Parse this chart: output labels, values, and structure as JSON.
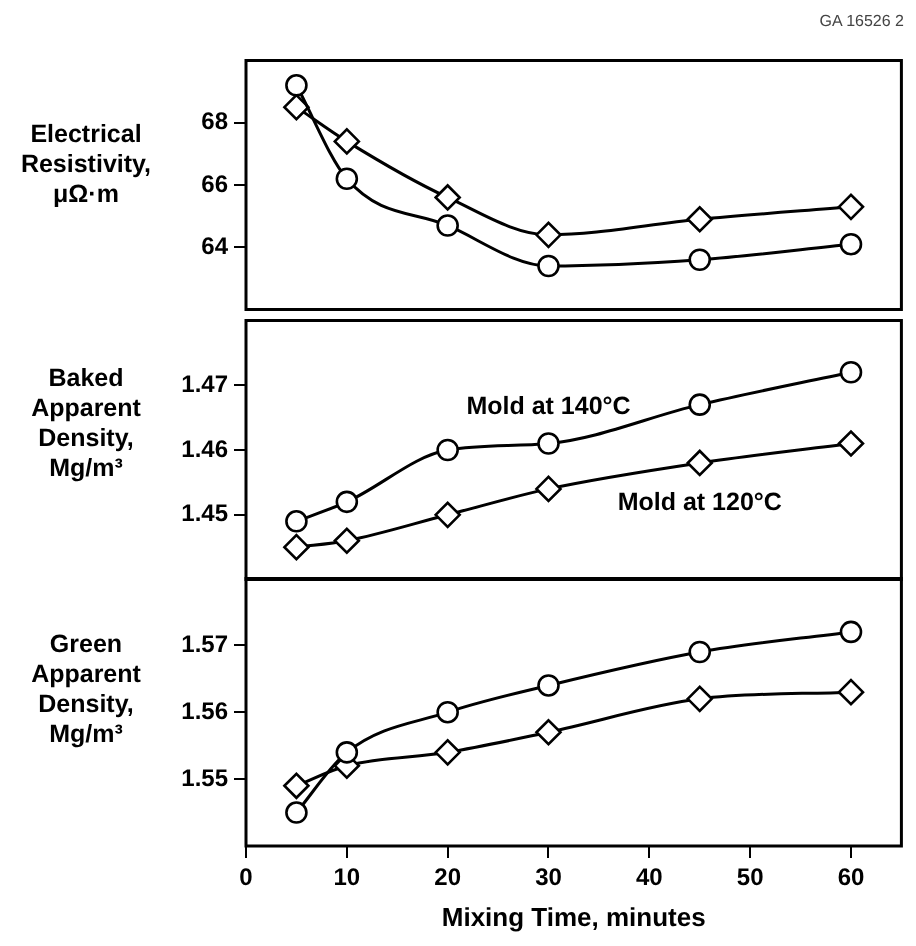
{
  "chart_data": [
    {
      "type": "line",
      "ylabel": "Electrical Resistivity, μΩ·m",
      "annotations": [
        "GA 16526 2"
      ],
      "x": [
        5,
        10,
        20,
        30,
        45,
        60
      ],
      "xlim": [
        0,
        65
      ],
      "xticks": [
        0,
        10,
        20,
        30,
        40,
        50,
        60
      ],
      "ylim": [
        62,
        70
      ],
      "yticks": [
        64,
        66,
        68
      ],
      "tick_labels": "y",
      "series": [
        {
          "color": "#000000",
          "marker": "circle",
          "values": [
            69.2,
            66.2,
            64.7,
            63.4,
            63.6,
            64.1
          ]
        },
        {
          "color": "#000000",
          "marker": "diamond",
          "values": [
            68.5,
            67.4,
            65.6,
            64.4,
            64.9,
            65.3
          ]
        }
      ]
    },
    {
      "type": "line",
      "ylabel": "Baked Apparent Density, Mg/m³",
      "x": [
        5,
        10,
        20,
        30,
        45,
        60
      ],
      "xlim": [
        0,
        65
      ],
      "xticks": [
        0,
        10,
        20,
        30,
        40,
        50,
        60
      ],
      "ylim": [
        1.44,
        1.48
      ],
      "yticks": [
        1.45,
        1.46,
        1.47
      ],
      "tick_labels": "y",
      "series": [
        {
          "name": "Mold at 140°C",
          "color": "#000000",
          "marker": "circle",
          "values": [
            1.449,
            1.452,
            1.46,
            1.461,
            1.467,
            1.472
          ]
        },
        {
          "name": "Mold at 120°C",
          "color": "#000000",
          "marker": "diamond",
          "values": [
            1.445,
            1.446,
            1.45,
            1.454,
            1.458,
            1.461
          ]
        }
      ]
    },
    {
      "type": "line",
      "ylabel": "Green Apparent Density, Mg/m³",
      "xlabel": "Mixing Time, minutes",
      "x": [
        5,
        10,
        20,
        30,
        45,
        60
      ],
      "xlim": [
        0,
        65
      ],
      "xticks": [
        0,
        10,
        20,
        30,
        40,
        50,
        60
      ],
      "ylim": [
        1.54,
        1.58
      ],
      "yticks": [
        1.55,
        1.56,
        1.57
      ],
      "series": [
        {
          "color": "#000000",
          "marker": "circle",
          "values": [
            1.545,
            1.554,
            1.56,
            1.564,
            1.569,
            1.572
          ]
        },
        {
          "color": "#000000",
          "marker": "diamond",
          "values": [
            1.549,
            1.552,
            1.554,
            1.557,
            1.562,
            1.563
          ]
        }
      ]
    }
  ]
}
